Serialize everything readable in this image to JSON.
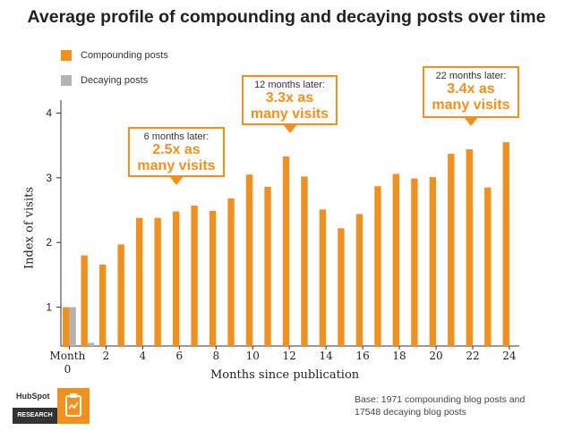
{
  "chart_data": {
    "type": "bar",
    "title": "Average profile of compounding and decaying posts over time",
    "xlabel": "Months since publication",
    "ylabel": "Index of visits",
    "ylim": [
      0.4,
      4.2
    ],
    "yticks": [
      1,
      2,
      3,
      4
    ],
    "categories": [
      "Month 0",
      "1",
      "2",
      "3",
      "4",
      "5",
      "6",
      "7",
      "8",
      "9",
      "10",
      "11",
      "12",
      "13",
      "14",
      "15",
      "16",
      "17",
      "18",
      "19",
      "20",
      "21",
      "22",
      "23",
      "24"
    ],
    "xtick_labels": [
      {
        "index": 0,
        "label": "Month 0"
      },
      {
        "index": 2,
        "label": "2"
      },
      {
        "index": 4,
        "label": "4"
      },
      {
        "index": 6,
        "label": "6"
      },
      {
        "index": 8,
        "label": "8"
      },
      {
        "index": 10,
        "label": "10"
      },
      {
        "index": 12,
        "label": "12"
      },
      {
        "index": 14,
        "label": "14"
      },
      {
        "index": 16,
        "label": "16"
      },
      {
        "index": 18,
        "label": "18"
      },
      {
        "index": 20,
        "label": "20"
      },
      {
        "index": 22,
        "label": "22"
      },
      {
        "index": 24,
        "label": "24"
      }
    ],
    "series": [
      {
        "name": "Compounding posts",
        "color": "#f0901e",
        "values": [
          1.0,
          1.8,
          1.66,
          1.97,
          2.38,
          2.38,
          2.48,
          2.57,
          2.49,
          2.68,
          3.05,
          2.86,
          3.33,
          3.02,
          2.51,
          2.22,
          2.44,
          2.87,
          3.06,
          2.99,
          3.01,
          3.37,
          3.44,
          2.85,
          3.55
        ]
      },
      {
        "name": "Decaying posts",
        "color": "#b3b3b3",
        "values": [
          1.0,
          0.45,
          0.19,
          0.19,
          0.17,
          0.16,
          0.16,
          0.17,
          0.15,
          0.14,
          0.14,
          0.12,
          0.11,
          0.11,
          0.1,
          0.1,
          0.12,
          0.13,
          0.16,
          0.16,
          0.15,
          0.17,
          0.19,
          0.18,
          0.21
        ]
      }
    ],
    "annotations": [
      {
        "bar_index": 6,
        "line1": "6 months later:",
        "line2": "2.5x as",
        "line3": "many visits"
      },
      {
        "bar_index": 12,
        "line1": "12 months later:",
        "line2": "3.3x as",
        "line3": "many visits"
      },
      {
        "bar_index": 22,
        "line1": "22 months later:",
        "line2": "3.4x as",
        "line3": "many visits"
      }
    ],
    "grid": false,
    "legend_position": "top-left"
  },
  "footer": {
    "logo_text": "HubSpot",
    "logo_band": "RESEARCH",
    "note_line1": "Base: 1971 compounding blog posts and",
    "note_line2": "17548 decaying blog posts"
  }
}
